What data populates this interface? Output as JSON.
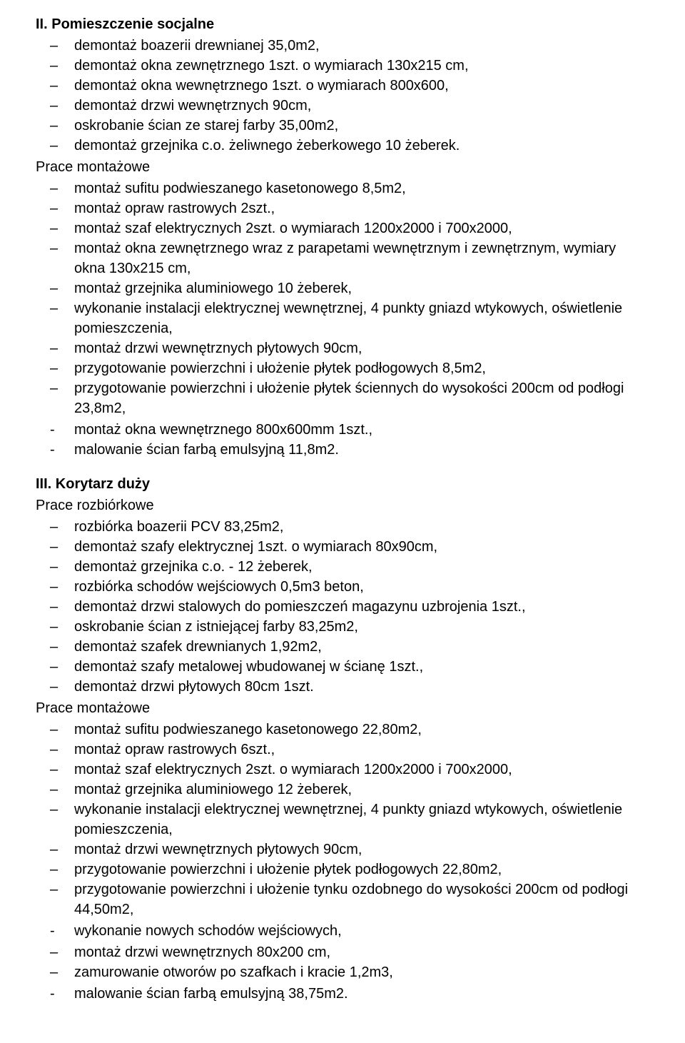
{
  "sections": [
    {
      "heading": "II. Pomieszczenie socjalne",
      "blocks": [
        {
          "type": "dash-list",
          "items": [
            "demontaż boazerii drewnianej 35,0m2,",
            "demontaż okna zewnętrznego 1szt. o wymiarach 130x215 cm,",
            "demontaż okna wewnętrznego 1szt. o wymiarach 800x600,",
            "demontaż drzwi wewnętrznych 90cm,",
            "oskrobanie ścian ze starej farby 35,00m2,",
            "demontaż grzejnika c.o. żeliwnego żeberkowego 10 żeberek."
          ]
        },
        {
          "type": "subheading",
          "text": "Prace montażowe"
        },
        {
          "type": "dash-list",
          "items": [
            "montaż sufitu podwieszanego kasetonowego 8,5m2,",
            "montaż opraw rastrowych 2szt.,",
            "montaż szaf elektrycznych 2szt. o wymiarach 1200x2000 i 700x2000,",
            "montaż okna zewnętrznego wraz z parapetami wewnętrznym i zewnętrznym, wymiary okna 130x215 cm,",
            "montaż grzejnika aluminiowego 10 żeberek,",
            "wykonanie instalacji elektrycznej wewnętrznej, 4 punkty gniazd wtykowych, oświetlenie pomieszczenia,",
            "montaż drzwi wewnętrznych płytowych 90cm,",
            "przygotowanie powierzchni i ułożenie płytek podłogowych 8,5m2,",
            "przygotowanie powierzchni i ułożenie płytek ściennych do wysokości 200cm od podłogi 23,8m2,"
          ]
        },
        {
          "type": "hyphen-list",
          "items": [
            "montaż okna wewnętrznego 800x600mm 1szt.,",
            "malowanie ścian farbą emulsyjną 11,8m2."
          ]
        }
      ]
    },
    {
      "heading": "III. Korytarz duży",
      "blocks": [
        {
          "type": "subheading",
          "text": "Prace rozbiórkowe"
        },
        {
          "type": "dash-list",
          "items": [
            "rozbiórka boazerii PCV 83,25m2,",
            "demontaż szafy elektrycznej 1szt. o wymiarach 80x90cm,",
            "demontaż grzejnika c.o.  -  12 żeberek,",
            "rozbiórka schodów wejściowych 0,5m3 beton,",
            "demontaż drzwi stalowych do pomieszczeń magazynu uzbrojenia 1szt.,",
            "oskrobanie ścian z istniejącej farby 83,25m2,",
            "demontaż szafek drewnianych 1,92m2,",
            "demontaż szafy metalowej wbudowanej w ścianę 1szt.,",
            "demontaż drzwi płytowych 80cm 1szt."
          ]
        },
        {
          "type": "subheading",
          "text": "Prace montażowe"
        },
        {
          "type": "dash-list",
          "items": [
            "montaż sufitu podwieszanego kasetonowego 22,80m2,",
            "montaż opraw rastrowych 6szt.,",
            "montaż szaf elektrycznych 2szt. o wymiarach 1200x2000 i 700x2000,",
            "montaż grzejnika aluminiowego 12 żeberek,",
            "wykonanie instalacji elektrycznej wewnętrznej, 4 punkty gniazd wtykowych, oświetlenie pomieszczenia,",
            "montaż drzwi wewnętrznych płytowych 90cm,",
            "przygotowanie powierzchni i ułożenie płytek podłogowych 22,80m2,",
            "przygotowanie powierzchni i ułożenie tynku ozdobnego do wysokości 200cm od podłogi 44,50m2,"
          ]
        },
        {
          "type": "hyphen-list",
          "items": [
            "wykonanie nowych schodów wejściowych,"
          ]
        },
        {
          "type": "dash-list",
          "items": [
            "montaż drzwi wewnętrznych 80x200 cm,",
            "zamurowanie otworów po szafkach i kracie 1,2m3,"
          ]
        },
        {
          "type": "hyphen-list",
          "items": [
            "malowanie ścian farbą emulsyjną 38,75m2."
          ]
        }
      ]
    }
  ]
}
